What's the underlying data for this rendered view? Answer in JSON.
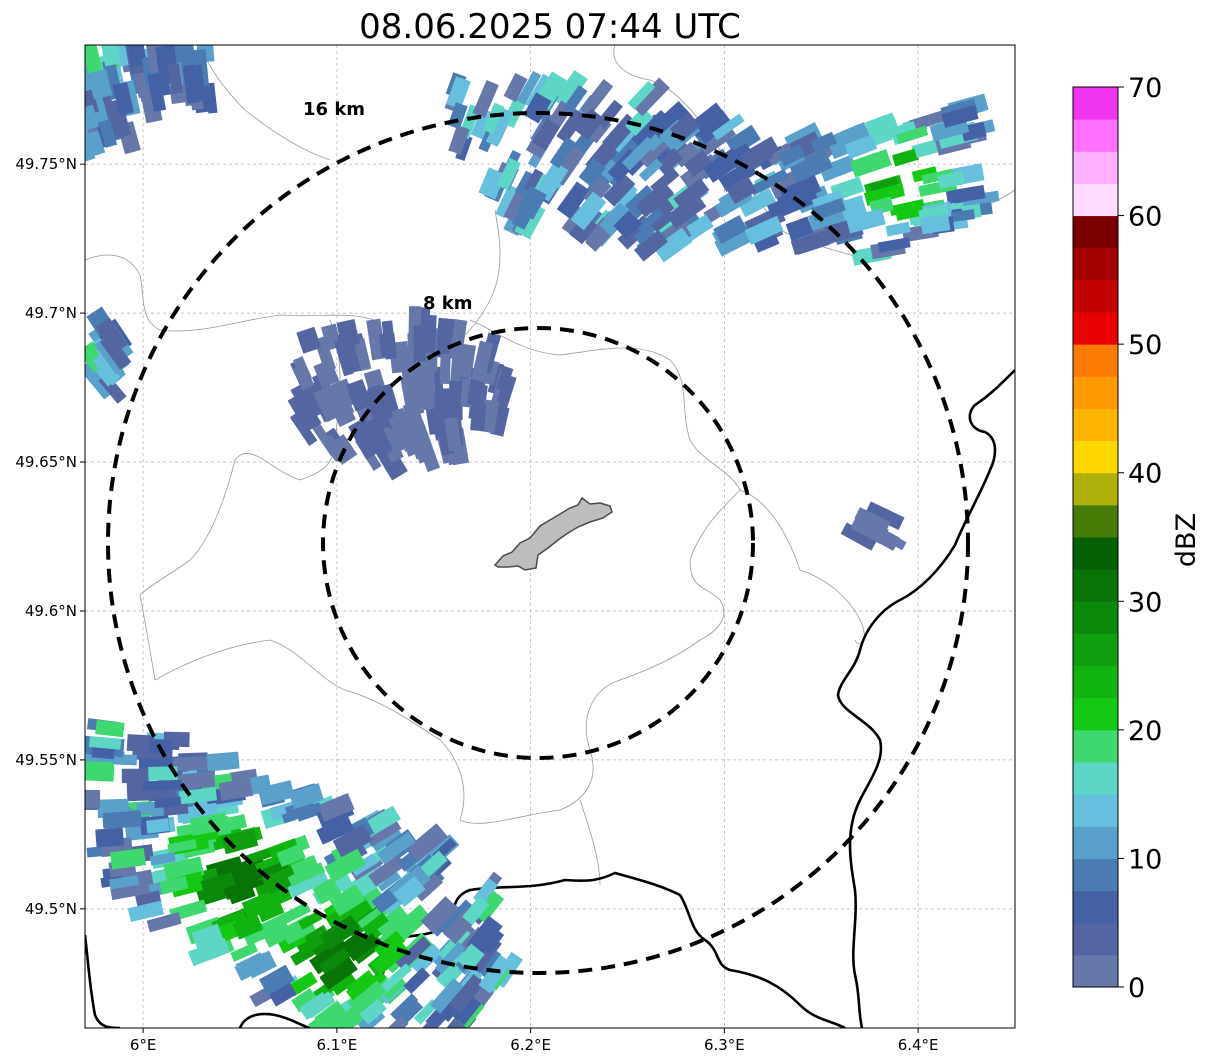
{
  "title": "08.06.2025 07:44 UTC",
  "map": {
    "lon_range": [
      5.97,
      6.45
    ],
    "lat_range": [
      49.46,
      49.79
    ],
    "lon_ticks": [
      {
        "value": 6.0,
        "label": "6°E"
      },
      {
        "value": 6.1,
        "label": "6.1°E"
      },
      {
        "value": 6.2,
        "label": "6.2°E"
      },
      {
        "value": 6.3,
        "label": "6.3°E"
      },
      {
        "value": 6.4,
        "label": "6.4°E"
      }
    ],
    "lat_ticks": [
      {
        "value": 49.75,
        "label": "49.75°N"
      },
      {
        "value": 49.7,
        "label": "49.7°N"
      },
      {
        "value": 49.65,
        "label": "49.65°N"
      },
      {
        "value": 49.6,
        "label": "49.6°N"
      },
      {
        "value": 49.55,
        "label": "49.55°N"
      },
      {
        "value": 49.5,
        "label": "49.5°N"
      }
    ],
    "gridlines": true,
    "center": {
      "lon": 6.203,
      "lat": 49.623
    },
    "range_rings": [
      {
        "radius_km": 8,
        "label": "8 km"
      },
      {
        "radius_km": 16,
        "label": "16 km"
      }
    ]
  },
  "colorbar": {
    "label": "dBZ",
    "min": 0,
    "max": 70,
    "step": 2.5,
    "ticks": [
      "0",
      "10",
      "20",
      "30",
      "40",
      "50",
      "60",
      "70"
    ],
    "colors": [
      "#6677aa",
      "#5466a2",
      "#4561a6",
      "#4a7bb3",
      "#59a0cb",
      "#66bfdd",
      "#5ed6c6",
      "#3ed86e",
      "#14c814",
      "#11b311",
      "#0e9e0e",
      "#0b890b",
      "#087408",
      "#055f05",
      "#467b08",
      "#b0b00b",
      "#ffd700",
      "#ffb500",
      "#ff9900",
      "#ff7b00",
      "#e60000",
      "#c40000",
      "#a30000",
      "#7a0000",
      "#ffdcff",
      "#ffb0ff",
      "#ff70ff",
      "#f035f0"
    ]
  },
  "echo_regions": [
    {
      "name": "north-east-band",
      "max_dbz": 27
    },
    {
      "name": "north-west-corner",
      "max_dbz": 21
    },
    {
      "name": "central-cluster",
      "max_dbz": 7
    },
    {
      "name": "west-edge",
      "max_dbz": 20
    },
    {
      "name": "south-west-band",
      "max_dbz": 32
    },
    {
      "name": "east-scatter",
      "max_dbz": 6
    }
  ]
}
